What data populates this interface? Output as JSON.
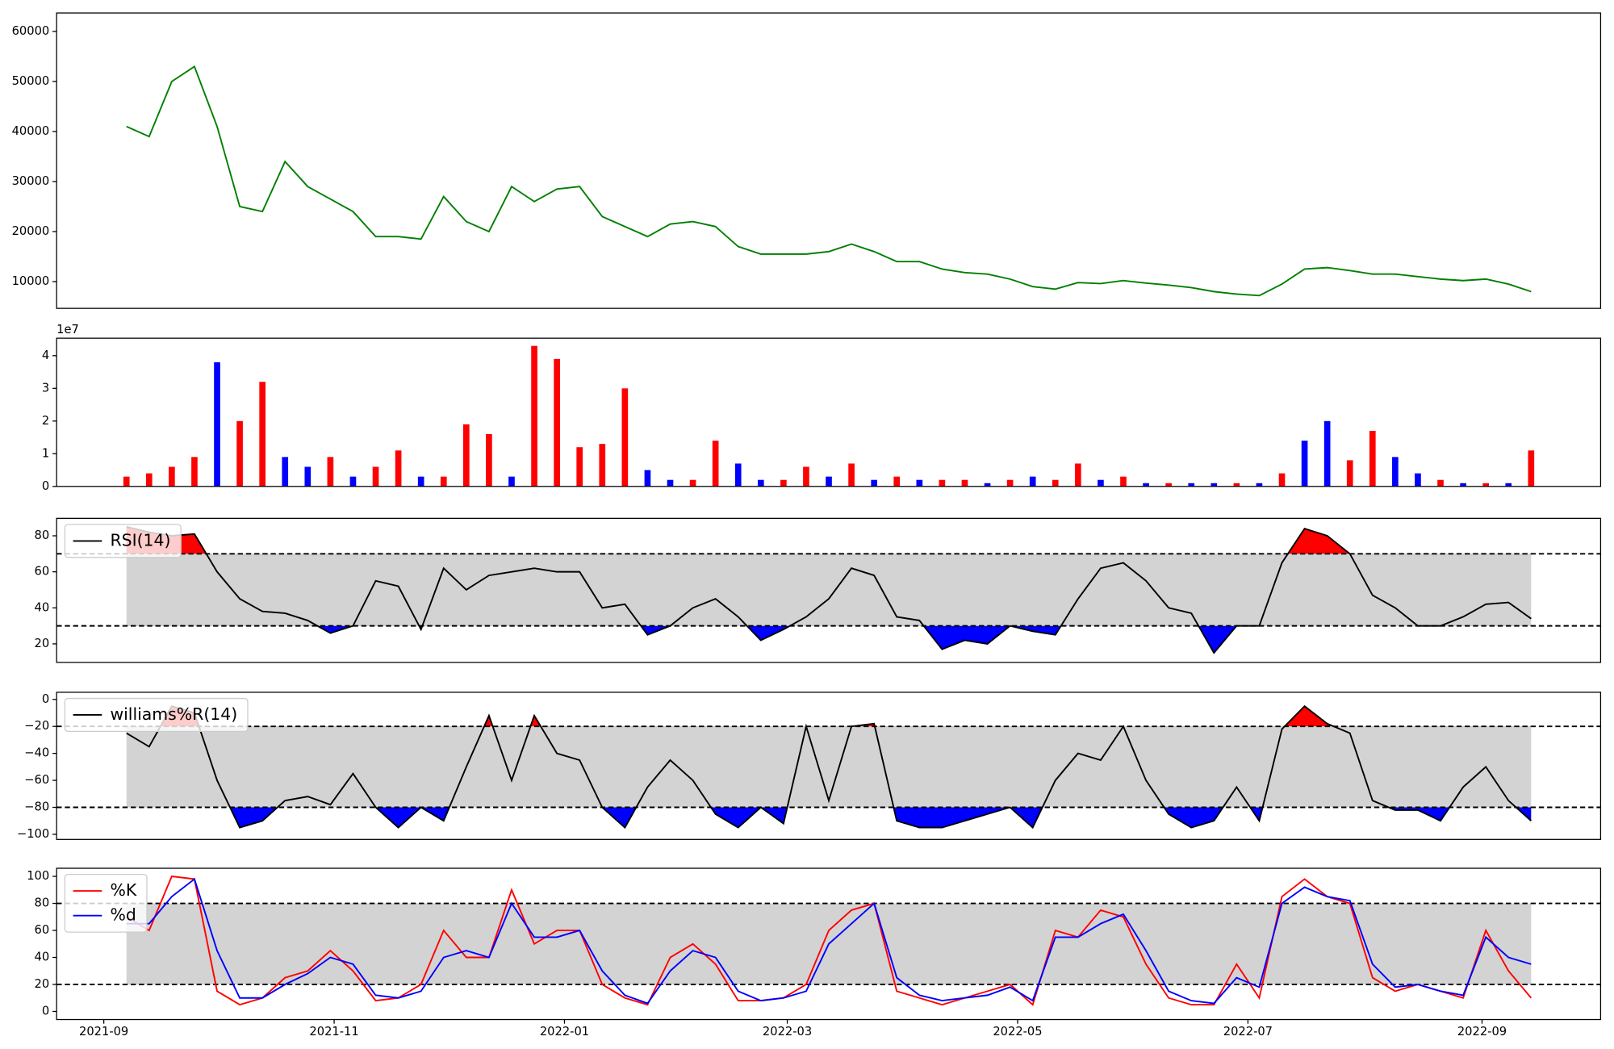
{
  "chart_data": [
    {
      "type": "line",
      "color": "green",
      "x": [
        18877,
        18883,
        18889,
        18895,
        18901,
        18907,
        18913,
        18919,
        18925,
        18931,
        18937,
        18943,
        18949,
        18955,
        18961,
        18967,
        18973,
        18979,
        18985,
        18991,
        18997,
        19003,
        19009,
        19015,
        19021,
        19027,
        19033,
        19039,
        19045,
        19051,
        19057,
        19063,
        19069,
        19075,
        19081,
        19087,
        19093,
        19099,
        19105,
        19111,
        19117,
        19123,
        19129,
        19135,
        19141,
        19147,
        19153,
        19159,
        19165,
        19171,
        19177,
        19183,
        19189,
        19195,
        19201,
        19207,
        19213,
        19219,
        19225,
        19231,
        19237,
        19243,
        19249
      ],
      "values": [
        41000,
        39000,
        50000,
        53000,
        41000,
        25000,
        24000,
        34000,
        29000,
        26500,
        24000,
        19000,
        19000,
        18500,
        27000,
        22000,
        20000,
        29000,
        26000,
        28500,
        29000,
        23000,
        21000,
        19000,
        21500,
        22000,
        21000,
        17000,
        15500,
        15500,
        15500,
        16000,
        17500,
        16000,
        14000,
        14000,
        12500,
        11800,
        11500,
        10500,
        9000,
        8500,
        9800,
        9600,
        10200,
        9700,
        9300,
        8800,
        8000,
        7500,
        7200,
        9500,
        12500,
        12800,
        12200,
        11500,
        11500,
        11000,
        10500,
        10200,
        10500,
        9500,
        8000
      ],
      "xlim": [
        18858.5,
        19267.4
      ],
      "ylim": [
        4650,
        63700
      ],
      "yticks": [
        10000,
        20000,
        30000,
        40000,
        50000,
        60000
      ]
    },
    {
      "type": "bar",
      "offset_label": "1e7",
      "x": [
        18877,
        18883,
        18889,
        18895,
        18901,
        18907,
        18913,
        18919,
        18925,
        18931,
        18937,
        18943,
        18949,
        18955,
        18961,
        18967,
        18973,
        18979,
        18985,
        18991,
        18997,
        19003,
        19009,
        19015,
        19021,
        19027,
        19033,
        19039,
        19045,
        19051,
        19057,
        19063,
        19069,
        19075,
        19081,
        19087,
        19093,
        19099,
        19105,
        19111,
        19117,
        19123,
        19129,
        19135,
        19141,
        19147,
        19153,
        19159,
        19165,
        19171,
        19177,
        19183,
        19189,
        19195,
        19201,
        19207,
        19213,
        19219,
        19225,
        19231,
        19237,
        19243,
        19249
      ],
      "values": [
        0.3,
        0.4,
        0.6,
        0.9,
        3.8,
        2.0,
        3.2,
        0.9,
        0.6,
        0.9,
        0.3,
        0.6,
        1.1,
        0.3,
        0.3,
        1.9,
        1.6,
        0.3,
        4.3,
        3.9,
        1.2,
        1.3,
        3.0,
        0.5,
        0.2,
        0.2,
        1.4,
        0.7,
        0.2,
        0.2,
        0.6,
        0.3,
        0.7,
        0.2,
        0.3,
        0.2,
        0.2,
        0.2,
        0.1,
        0.2,
        0.3,
        0.2,
        0.7,
        0.2,
        0.3,
        0.1,
        0.1,
        0.1,
        0.1,
        0.1,
        0.1,
        0.4,
        1.4,
        2.0,
        0.8,
        1.7,
        0.9,
        0.4,
        0.2,
        0.1,
        0.1,
        0.1,
        1.1
      ],
      "colors": [
        "red",
        "red",
        "red",
        "red",
        "blue",
        "red",
        "red",
        "blue",
        "blue",
        "red",
        "blue",
        "red",
        "red",
        "blue",
        "red",
        "red",
        "red",
        "blue",
        "red",
        "red",
        "red",
        "red",
        "red",
        "blue",
        "blue",
        "red",
        "red",
        "blue",
        "blue",
        "red",
        "red",
        "blue",
        "red",
        "blue",
        "red",
        "blue",
        "red",
        "red",
        "blue",
        "red",
        "blue",
        "red",
        "red",
        "blue",
        "red",
        "blue",
        "red",
        "blue",
        "blue",
        "red",
        "blue",
        "red",
        "blue",
        "blue",
        "red",
        "red",
        "blue",
        "blue",
        "red",
        "blue",
        "red",
        "blue",
        "red"
      ],
      "xlim": [
        18858.5,
        19267.4
      ],
      "ylim": [
        0,
        4.535
      ],
      "yticks": [
        0,
        1,
        2,
        3,
        4
      ]
    },
    {
      "type": "line",
      "legend": "upper left",
      "upper_band": 70,
      "lower_band": 30,
      "band_color": "lightgray",
      "above_color": "red",
      "below_color": "blue",
      "x": [
        18877,
        18883,
        18889,
        18895,
        18901,
        18907,
        18913,
        18919,
        18925,
        18931,
        18937,
        18943,
        18949,
        18955,
        18961,
        18967,
        18973,
        18979,
        18985,
        18991,
        18997,
        19003,
        19009,
        19015,
        19021,
        19027,
        19033,
        19039,
        19045,
        19051,
        19057,
        19063,
        19069,
        19075,
        19081,
        19087,
        19093,
        19099,
        19105,
        19111,
        19117,
        19123,
        19129,
        19135,
        19141,
        19147,
        19153,
        19159,
        19165,
        19171,
        19177,
        19183,
        19189,
        19195,
        19201,
        19207,
        19213,
        19219,
        19225,
        19231,
        19237,
        19243,
        19249
      ],
      "series": [
        {
          "name": "RSI(14)",
          "color": "black",
          "values": [
            85,
            82,
            80,
            81,
            60,
            45,
            38,
            37,
            33,
            26,
            30,
            55,
            52,
            28,
            62,
            50,
            58,
            60,
            62,
            60,
            60,
            40,
            42,
            25,
            30,
            40,
            45,
            35,
            22,
            28,
            35,
            45,
            62,
            58,
            35,
            33,
            17,
            22,
            20,
            30,
            27,
            25,
            45,
            62,
            65,
            55,
            40,
            37,
            15,
            30,
            30,
            65,
            84,
            80,
            70,
            47,
            40,
            30,
            30,
            35,
            42,
            43,
            34
          ]
        }
      ],
      "xlim": [
        18858.5,
        19267.4
      ],
      "ylim": [
        9.7,
        89.7
      ],
      "yticks": [
        20,
        40,
        60,
        80
      ]
    },
    {
      "type": "line",
      "legend": "upper left",
      "upper_band": -20,
      "lower_band": -80,
      "band_color": "lightgray",
      "above_color": "red",
      "below_color": "blue",
      "x": [
        18877,
        18883,
        18889,
        18895,
        18901,
        18907,
        18913,
        18919,
        18925,
        18931,
        18937,
        18943,
        18949,
        18955,
        18961,
        18967,
        18973,
        18979,
        18985,
        18991,
        18997,
        19003,
        19009,
        19015,
        19021,
        19027,
        19033,
        19039,
        19045,
        19051,
        19057,
        19063,
        19069,
        19075,
        19081,
        19087,
        19093,
        19099,
        19105,
        19111,
        19117,
        19123,
        19129,
        19135,
        19141,
        19147,
        19153,
        19159,
        19165,
        19171,
        19177,
        19183,
        19189,
        19195,
        19201,
        19207,
        19213,
        19219,
        19225,
        19231,
        19237,
        19243,
        19249
      ],
      "series": [
        {
          "name": "williams%R(14)",
          "color": "black",
          "values": [
            -25,
            -35,
            -5,
            -10,
            -60,
            -95,
            -90,
            -75,
            -72,
            -78,
            -55,
            -80,
            -95,
            -80,
            -90,
            -50,
            -12,
            -60,
            -12,
            -40,
            -45,
            -80,
            -95,
            -65,
            -45,
            -60,
            -85,
            -95,
            -80,
            -92,
            -20,
            -75,
            -20,
            -18,
            -90,
            -95,
            -95,
            -90,
            -85,
            -80,
            -95,
            -60,
            -40,
            -45,
            -20,
            -60,
            -85,
            -95,
            -90,
            -65,
            -90,
            -22,
            -5,
            -18,
            -25,
            -75,
            -82,
            -82,
            -90,
            -65,
            -50,
            -75,
            -90
          ]
        }
      ],
      "xlim": [
        18858.5,
        19267.4
      ],
      "ylim": [
        -103.8,
        5.3
      ],
      "yticks": [
        {
          "value": -100,
          "label": "−100"
        },
        {
          "value": -80,
          "label": "−80"
        },
        {
          "value": -60,
          "label": "−60"
        },
        {
          "value": -40,
          "label": "−40"
        },
        {
          "value": -20,
          "label": "−20"
        },
        0
      ]
    },
    {
      "type": "line",
      "legend": "upper left",
      "upper_band": 80,
      "lower_band": 20,
      "band_color": "lightgray",
      "x": [
        18877,
        18883,
        18889,
        18895,
        18901,
        18907,
        18913,
        18919,
        18925,
        18931,
        18937,
        18943,
        18949,
        18955,
        18961,
        18967,
        18973,
        18979,
        18985,
        18991,
        18997,
        19003,
        19009,
        19015,
        19021,
        19027,
        19033,
        19039,
        19045,
        19051,
        19057,
        19063,
        19069,
        19075,
        19081,
        19087,
        19093,
        19099,
        19105,
        19111,
        19117,
        19123,
        19129,
        19135,
        19141,
        19147,
        19153,
        19159,
        19165,
        19171,
        19177,
        19183,
        19189,
        19195,
        19201,
        19207,
        19213,
        19219,
        19225,
        19231,
        19237,
        19243,
        19249
      ],
      "series": [
        {
          "name": "%K",
          "color": "red",
          "values": [
            70,
            60,
            100,
            98,
            15,
            5,
            10,
            25,
            30,
            45,
            30,
            8,
            10,
            20,
            60,
            40,
            40,
            90,
            50,
            60,
            60,
            20,
            10,
            5,
            40,
            50,
            35,
            8,
            8,
            10,
            20,
            60,
            75,
            80,
            15,
            10,
            5,
            10,
            15,
            20,
            5,
            60,
            55,
            75,
            70,
            35,
            10,
            5,
            5,
            35,
            10,
            85,
            98,
            85,
            80,
            25,
            15,
            20,
            15,
            10,
            60,
            30,
            10
          ]
        },
        {
          "name": "%d",
          "color": "blue",
          "values": [
            65,
            65,
            85,
            98,
            45,
            10,
            10,
            20,
            28,
            40,
            35,
            12,
            10,
            15,
            40,
            45,
            40,
            80,
            55,
            55,
            60,
            30,
            12,
            6,
            30,
            45,
            40,
            15,
            8,
            10,
            15,
            50,
            65,
            80,
            25,
            12,
            8,
            10,
            12,
            18,
            8,
            55,
            55,
            65,
            72,
            45,
            15,
            8,
            6,
            25,
            18,
            80,
            92,
            85,
            82,
            35,
            18,
            20,
            15,
            12,
            55,
            40,
            35
          ]
        }
      ],
      "xlim": [
        18858.5,
        19267.4
      ],
      "ylim": [
        -6,
        106
      ],
      "yticks": [
        0,
        20,
        40,
        60,
        80,
        100
      ],
      "xticks": [
        {
          "value": 18871,
          "label": "2021-09"
        },
        {
          "value": 18932,
          "label": "2021-11"
        },
        {
          "value": 18993,
          "label": "2022-01"
        },
        {
          "value": 19052,
          "label": "2022-03"
        },
        {
          "value": 19113,
          "label": "2022-05"
        },
        {
          "value": 19174,
          "label": "2022-07"
        },
        {
          "value": 19236,
          "label": "2022-09"
        }
      ]
    }
  ]
}
